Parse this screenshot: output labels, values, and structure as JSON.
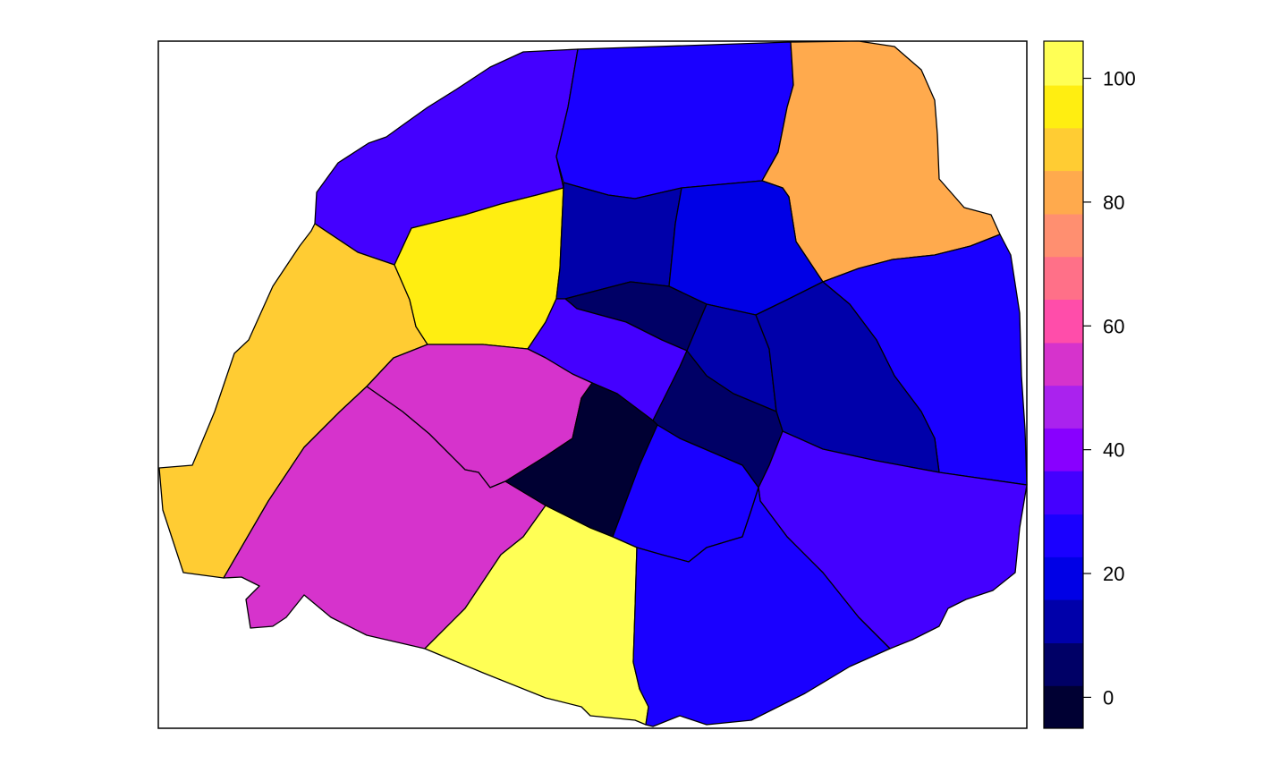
{
  "map": {
    "districts": [
      {
        "id": "north-west",
        "value": 35
      },
      {
        "id": "north",
        "value": 25
      },
      {
        "id": "north-east",
        "value": 80
      },
      {
        "id": "west",
        "value": 90
      },
      {
        "id": "west-center",
        "value": 95
      },
      {
        "id": "center-north-a",
        "value": 10
      },
      {
        "id": "center-north-b",
        "value": 20
      },
      {
        "id": "east",
        "value": 25
      },
      {
        "id": "center-east",
        "value": 10
      },
      {
        "id": "center-band",
        "value": 5
      },
      {
        "id": "center-mid",
        "value": 10
      },
      {
        "id": "center-west",
        "value": 35
      },
      {
        "id": "center-east-low",
        "value": 5
      },
      {
        "id": "south-west-inner",
        "value": 55
      },
      {
        "id": "south-west",
        "value": 55
      },
      {
        "id": "center-south",
        "value": 0
      },
      {
        "id": "south-center",
        "value": 25
      },
      {
        "id": "south-east",
        "value": 35
      },
      {
        "id": "south-mid",
        "value": 100
      },
      {
        "id": "south",
        "value": 25
      }
    ]
  },
  "legend": {
    "range": [
      -5,
      106
    ],
    "ticks": [
      "0",
      "20",
      "40",
      "60",
      "80",
      "100"
    ],
    "tick_values": [
      0,
      20,
      40,
      60,
      80,
      100
    ],
    "bins": [
      {
        "from": -5,
        "to": 1.9,
        "color": "#000033"
      },
      {
        "from": 1.9,
        "to": 8.8,
        "color": "#000066"
      },
      {
        "from": 8.8,
        "to": 15.8,
        "color": "#0000AA"
      },
      {
        "from": 15.8,
        "to": 22.7,
        "color": "#0000E6"
      },
      {
        "from": 22.7,
        "to": 29.6,
        "color": "#1A00FF"
      },
      {
        "from": 29.6,
        "to": 36.6,
        "color": "#4400FF"
      },
      {
        "from": 36.6,
        "to": 43.5,
        "color": "#8800FF"
      },
      {
        "from": 43.5,
        "to": 50.4,
        "color": "#AA22EE"
      },
      {
        "from": 50.4,
        "to": 57.3,
        "color": "#D633CC"
      },
      {
        "from": 57.3,
        "to": 64.3,
        "color": "#FF4DAA"
      },
      {
        "from": 64.3,
        "to": 71.2,
        "color": "#FF7088"
      },
      {
        "from": 71.2,
        "to": 78.1,
        "color": "#FF8F70"
      },
      {
        "from": 78.1,
        "to": 85.1,
        "color": "#FFAA4D"
      },
      {
        "from": 85.1,
        "to": 92.0,
        "color": "#FFCC33"
      },
      {
        "from": 92.0,
        "to": 98.9,
        "color": "#FFEE11"
      },
      {
        "from": 98.9,
        "to": 106,
        "color": "#FFFF55"
      }
    ]
  }
}
